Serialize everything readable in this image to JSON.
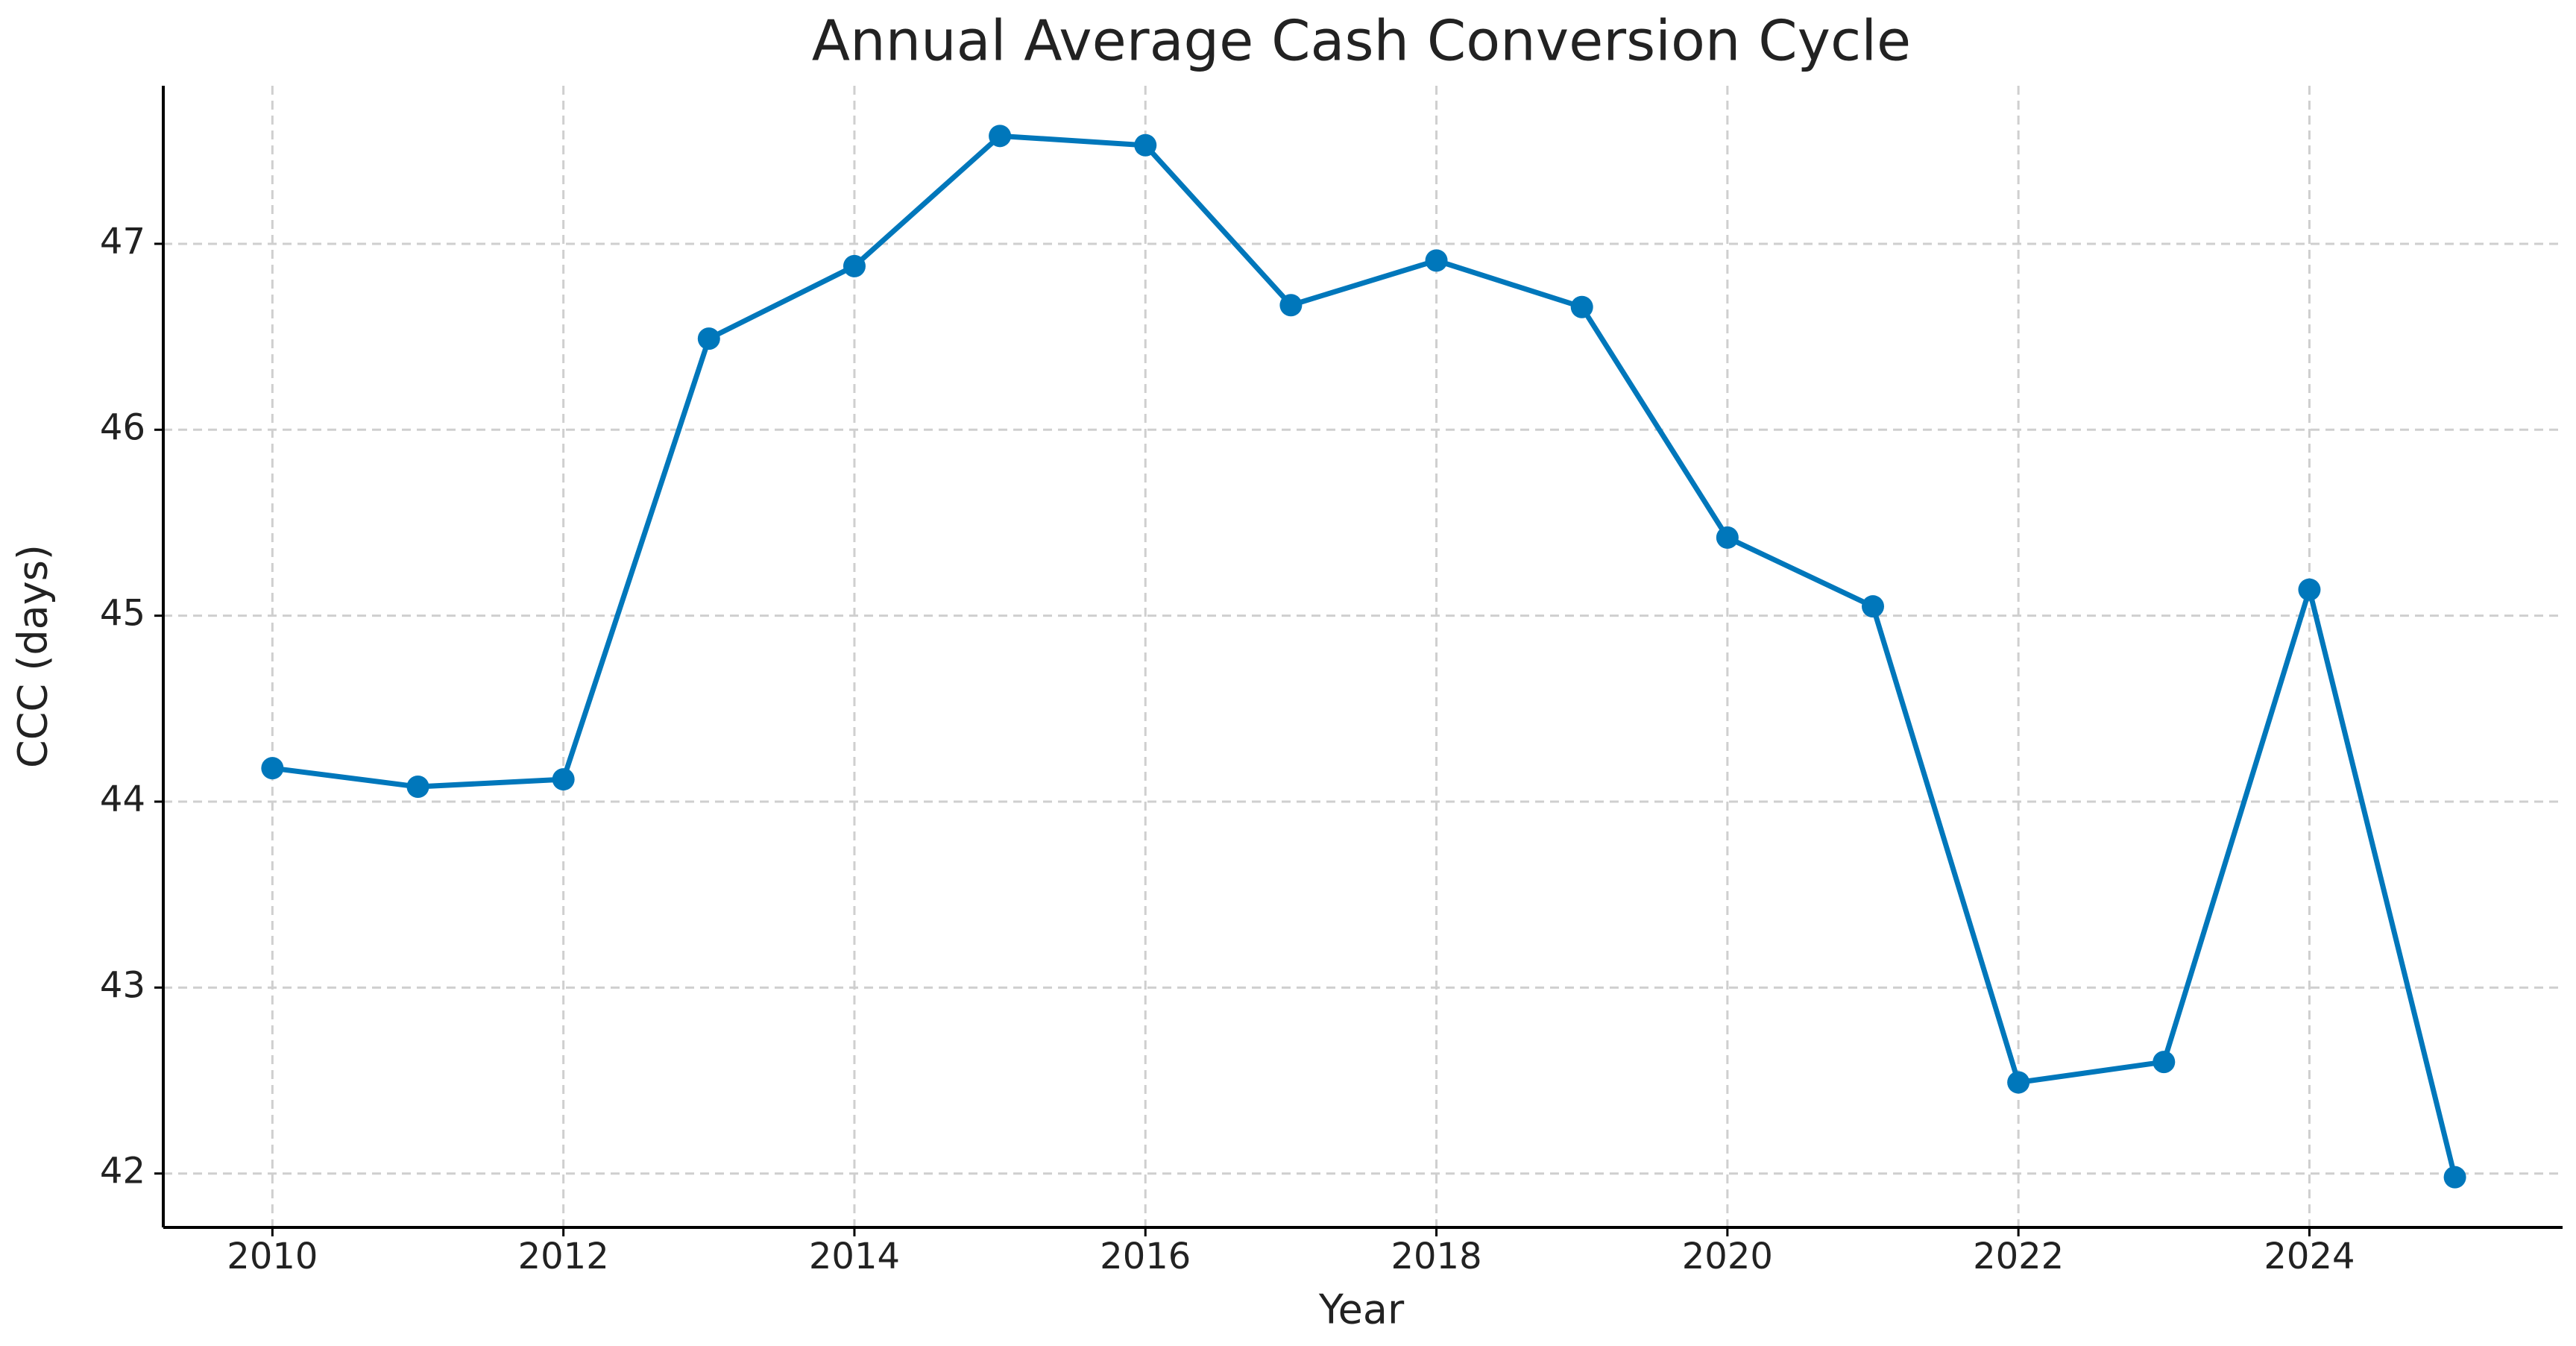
{
  "chart_data": {
    "type": "line",
    "title": "Annual Average Cash Conversion Cycle",
    "x_label": "Year",
    "y_label": "CCC (days)",
    "x": [
      2010,
      2011,
      2012,
      2013,
      2014,
      2015,
      2016,
      2017,
      2018,
      2019,
      2020,
      2021,
      2022,
      2023,
      2024,
      2025
    ],
    "series": [
      {
        "name": "CCC",
        "color": "#0077bb",
        "values": [
          44.18,
          44.08,
          44.12,
          46.49,
          46.88,
          47.58,
          47.53,
          46.67,
          46.91,
          46.66,
          45.42,
          45.05,
          42.49,
          42.6,
          45.14,
          41.98
        ]
      }
    ],
    "xlim": [
      2009.25,
      2025.74
    ],
    "xticks": [
      2010,
      2012,
      2014,
      2016,
      2018,
      2020,
      2022,
      2024
    ],
    "ylim": [
      41.71,
      47.85
    ],
    "yticks": [
      42,
      43,
      44,
      45,
      46,
      47
    ],
    "grid": true,
    "markers": true
  }
}
